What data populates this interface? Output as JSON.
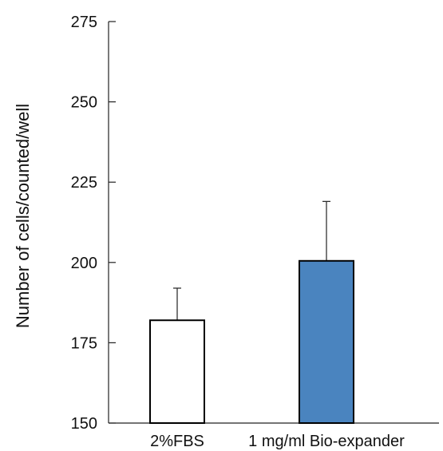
{
  "chart_data": {
    "type": "bar",
    "title": "",
    "xlabel": "",
    "ylabel": "Number of cells/counted/well",
    "ylim": [
      150,
      275
    ],
    "yticks": [
      150,
      175,
      200,
      225,
      250,
      275
    ],
    "grid": false,
    "legend": "none",
    "categories": [
      "2%FBS",
      "1 mg/ml Bio-expander"
    ],
    "values": [
      182,
      200.5
    ],
    "error_upper": [
      10,
      18.5
    ],
    "colors": {
      "bars": [
        "#ffffff",
        "#4a84bf"
      ],
      "bar_edge": "#000000",
      "axis": "#222222"
    }
  }
}
